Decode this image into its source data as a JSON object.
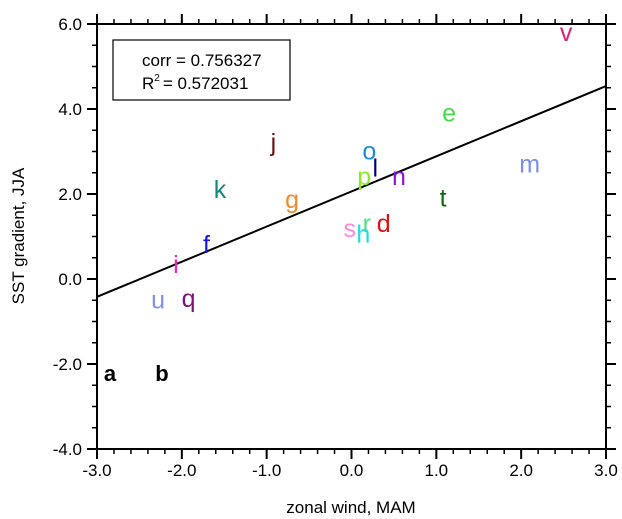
{
  "chart_data": {
    "type": "scatter",
    "x_label": "zonal wind, MAM",
    "y_label": "SST gradient, JJA",
    "xlim": [
      -3,
      3
    ],
    "ylim": [
      -4,
      6
    ],
    "xticks": [
      {
        "value": -3,
        "label": "-3.0"
      },
      {
        "value": -2,
        "label": "-2.0"
      },
      {
        "value": -1,
        "label": "-1.0"
      },
      {
        "value": 0,
        "label": "0.0"
      },
      {
        "value": 1,
        "label": "1.0"
      },
      {
        "value": 2,
        "label": "2.0"
      },
      {
        "value": 3,
        "label": "3.0"
      }
    ],
    "yticks": [
      {
        "value": -4,
        "label": "-4.0"
      },
      {
        "value": -2,
        "label": "-2.0"
      },
      {
        "value": 0,
        "label": "0.0"
      },
      {
        "value": 2,
        "label": "2.0"
      },
      {
        "value": 4,
        "label": "4.0"
      },
      {
        "value": 6,
        "label": "6.0"
      }
    ],
    "x_minor_step": 0.2,
    "y_minor_step": 0.5,
    "labels": [
      "v",
      "e",
      "m",
      "j",
      "o",
      "l",
      "p",
      "n",
      "k",
      "g",
      "t",
      "s",
      "r",
      "h",
      "d",
      "f",
      "i",
      "u",
      "q"
    ],
    "x": [
      2.53,
      1.15,
      2.1,
      -0.92,
      0.21,
      0.28,
      0.15,
      0.56,
      -1.55,
      -0.7,
      1.08,
      -0.02,
      0.18,
      0.14,
      0.38,
      -1.71,
      -2.07,
      -2.28,
      -1.92
    ],
    "values": [
      5.79,
      3.9,
      2.7,
      3.2,
      3.0,
      2.6,
      2.4,
      2.4,
      2.1,
      1.86,
      1.9,
      1.18,
      1.3,
      1.05,
      1.3,
      0.8,
      0.33,
      -0.5,
      -0.47
    ],
    "colors": [
      "#e0207f",
      "#44dd44",
      "#7a8ef0",
      "#6e1010",
      "#1e88e5",
      "#000080",
      "#88ee22",
      "#8a18e0",
      "#158585",
      "#f08a2a",
      "#0a6a0a",
      "#ff88dd",
      "#55dd88",
      "#20dddd",
      "#e01010",
      "#1515e0",
      "#ee22cc",
      "#8090ee",
      "#801080"
    ],
    "fit_line": {
      "x": [
        -3,
        3
      ],
      "y": [
        -0.42,
        4.54
      ]
    },
    "stats": {
      "corr": "corr = 0.756327",
      "r2_symbol": "R",
      "r2_exp": "2",
      "r2_value": "= 0.572031"
    },
    "panel_labels": [
      "a",
      "b"
    ]
  }
}
